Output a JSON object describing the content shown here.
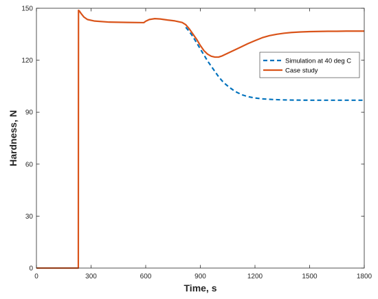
{
  "chart_data": {
    "type": "line",
    "title": "",
    "xlabel": "Time, s",
    "ylabel": "Hardness, N",
    "xlim": [
      0,
      1800
    ],
    "ylim": [
      0,
      150
    ],
    "xticks": [
      0,
      300,
      600,
      900,
      1200,
      1500,
      1800
    ],
    "yticks": [
      0,
      30,
      60,
      90,
      120,
      150
    ],
    "grid": false,
    "legend_position": "top-right",
    "series": [
      {
        "name": "Simulation at 40 deg C",
        "color": "#0072BD",
        "style": "dashed",
        "x": [
          820,
          840,
          860,
          880,
          900,
          920,
          940,
          960,
          980,
          1000,
          1020,
          1040,
          1060,
          1080,
          1100,
          1130,
          1160,
          1200,
          1240,
          1300,
          1350,
          1400,
          1500,
          1600,
          1700,
          1800
        ],
        "y": [
          139,
          136.5,
          133.5,
          130,
          126.5,
          123,
          119.5,
          116.5,
          113.5,
          110.5,
          108,
          106,
          104.3,
          102.8,
          101.5,
          100,
          99,
          98.2,
          97.7,
          97.3,
          97.1,
          97,
          96.9,
          96.9,
          96.9,
          96.9
        ]
      },
      {
        "name": "Case study",
        "color": "#D95319",
        "style": "solid",
        "x": [
          0,
          230,
          231,
          235,
          245,
          260,
          280,
          320,
          400,
          500,
          590,
          600,
          620,
          650,
          680,
          720,
          760,
          800,
          820,
          840,
          860,
          880,
          900,
          920,
          940,
          960,
          980,
          1000,
          1020,
          1040,
          1080,
          1120,
          1160,
          1200,
          1240,
          1280,
          1320,
          1360,
          1400,
          1450,
          1500,
          1550,
          1600,
          1650,
          1700,
          1750,
          1800
        ],
        "y": [
          0,
          0,
          148.8,
          148.5,
          147,
          145,
          143.5,
          142.6,
          142,
          141.8,
          141.7,
          142.5,
          143.5,
          144,
          143.8,
          143.2,
          142.7,
          141.8,
          140.5,
          138,
          135,
          132,
          128.5,
          125.5,
          123.5,
          122.3,
          121.8,
          121.8,
          122.5,
          123.5,
          125.5,
          127.5,
          129.5,
          131.3,
          133,
          134.2,
          135,
          135.6,
          136,
          136.3,
          136.5,
          136.6,
          136.7,
          136.7,
          136.8,
          136.8,
          136.8
        ]
      }
    ]
  }
}
